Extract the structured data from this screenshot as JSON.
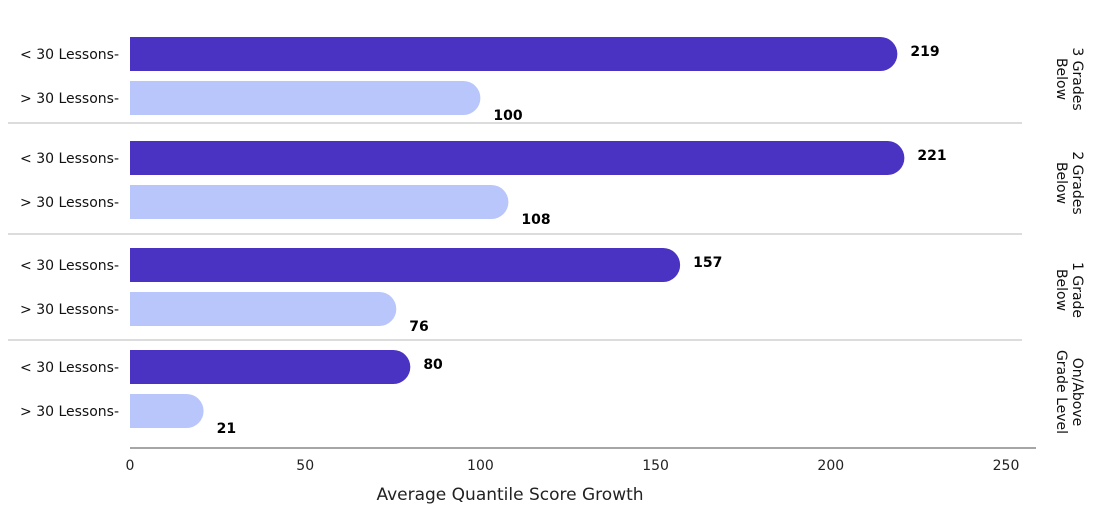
{
  "chart_data": {
    "type": "bar",
    "orientation": "horizontal",
    "xlabel": "Average Quantile Score Growth",
    "xlim": [
      0,
      250
    ],
    "xticks": [
      "0",
      "50",
      "100",
      "150",
      "200",
      "250"
    ],
    "groups": [
      {
        "label": [
          "3 Grades",
          "Below"
        ],
        "bars": [
          {
            "label": "< 30 Lessons-",
            "value": 219
          },
          {
            "label": "> 30 Lessons-",
            "value": 100
          }
        ]
      },
      {
        "label": [
          "2 Grades",
          "Below"
        ],
        "bars": [
          {
            "label": "< 30 Lessons-",
            "value": 221
          },
          {
            "label": "> 30 Lessons-",
            "value": 108
          }
        ]
      },
      {
        "label": [
          "1 Grade",
          "Below"
        ],
        "bars": [
          {
            "label": "< 30 Lessons-",
            "value": 157
          },
          {
            "label": "> 30 Lessons-",
            "value": 76
          }
        ]
      },
      {
        "label": [
          "On/Above",
          "Grade Level"
        ],
        "bars": [
          {
            "label": "< 30 Lessons-",
            "value": 80
          },
          {
            "label": "> 30 Lessons-",
            "value": 21
          }
        ]
      }
    ],
    "colors": {
      "< 30 Lessons-": "#4a32c2",
      "> 30 Lessons-": "#b9c6fb"
    },
    "grid": false,
    "legend": "none"
  }
}
